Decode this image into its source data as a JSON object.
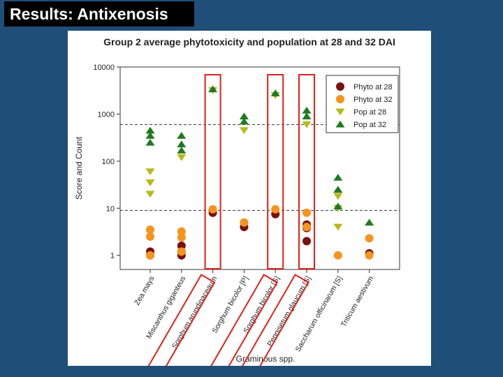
{
  "slide": {
    "title": "Results: Antixenosis"
  },
  "chart_data": {
    "type": "scatter",
    "title": "Group 2 average phytotoxicity and population at 28 and 32 DAI",
    "xlabel": "Graminous spp.",
    "ylabel": "Score and Count",
    "yscale": "log",
    "ylim": [
      0.5,
      10000
    ],
    "yticks": [
      "1",
      "10",
      "100",
      "1000",
      "10000"
    ],
    "yticks_values": [
      1,
      10,
      100,
      1000,
      10000
    ],
    "categories": [
      "Zea mays",
      "Miscanthus giganteus",
      "Sorghum arundinaceaum",
      "Sorghum bicolor [P]",
      "Sorghum bicolor [S]",
      "Pennisetum glaucum [S]",
      "Saccharum officinarum [S]",
      "Triticum aestivum"
    ],
    "reference_lines": [
      600,
      9
    ],
    "highlighted_categories": [
      "Sorghum arundinaceaum",
      "Sorghum bicolor [S]",
      "Pennisetum glaucum [S]"
    ],
    "highlight_color": "#e0201b",
    "grid": false,
    "legend_position": "top-right",
    "series": [
      {
        "name": "Phyto at 28",
        "marker": "circle",
        "color": "#7a1010",
        "points": [
          {
            "category": "Zea mays",
            "values": [
              1.2,
              1.0
            ]
          },
          {
            "category": "Miscanthus giganteus",
            "values": [
              1.6,
              1.2,
              1.0
            ]
          },
          {
            "category": "Sorghum arundinaceaum",
            "values": [
              8
            ]
          },
          {
            "category": "Sorghum bicolor [P]",
            "values": [
              4
            ]
          },
          {
            "category": "Sorghum bicolor [S]",
            "values": [
              7.5
            ]
          },
          {
            "category": "Pennisetum glaucum [S]",
            "values": [
              4.5,
              3.8,
              2
            ]
          },
          {
            "category": "Saccharum officinarum [S]",
            "values": []
          },
          {
            "category": "Triticum aestivum",
            "values": [
              1.1
            ]
          }
        ]
      },
      {
        "name": "Phyto at 32",
        "marker": "circle",
        "color": "#f7941d",
        "points": [
          {
            "category": "Zea mays",
            "values": [
              3.5,
              2.5,
              1.0
            ]
          },
          {
            "category": "Miscanthus giganteus",
            "values": [
              3.2,
              2.4,
              1.2
            ]
          },
          {
            "category": "Sorghum arundinaceaum",
            "values": [
              9.5
            ]
          },
          {
            "category": "Sorghum bicolor [P]",
            "values": [
              5
            ]
          },
          {
            "category": "Sorghum bicolor [S]",
            "values": [
              9.5
            ]
          },
          {
            "category": "Pennisetum glaucum [S]",
            "values": [
              8,
              4
            ]
          },
          {
            "category": "Saccharum officinarum [S]",
            "values": [
              1.0
            ]
          },
          {
            "category": "Triticum aestivum",
            "values": [
              2.3,
              1.0
            ]
          }
        ]
      },
      {
        "name": "Pop at 28",
        "marker": "triangle-down",
        "color": "#b8b81a",
        "points": [
          {
            "category": "Zea mays",
            "values": [
              60,
              35,
              20
            ]
          },
          {
            "category": "Miscanthus giganteus",
            "values": [
              120
            ]
          },
          {
            "category": "Sorghum arundinaceaum",
            "values": [
              3200
            ]
          },
          {
            "category": "Sorghum bicolor [P]",
            "values": [
              450
            ]
          },
          {
            "category": "Sorghum bicolor [S]",
            "values": [
              2500
            ]
          },
          {
            "category": "Pennisetum glaucum [S]",
            "values": [
              600
            ]
          },
          {
            "category": "Saccharum officinarum [S]",
            "values": [
              18,
              10,
              4
            ]
          },
          {
            "category": "Triticum aestivum",
            "values": []
          }
        ]
      },
      {
        "name": "Pop at 32",
        "marker": "triangle-up",
        "color": "#1f7a1f",
        "points": [
          {
            "category": "Zea mays",
            "values": [
              450,
              350,
              250
            ]
          },
          {
            "category": "Miscanthus giganteus",
            "values": [
              350,
              230,
              170
            ]
          },
          {
            "category": "Sorghum arundinaceaum",
            "values": [
              3400
            ]
          },
          {
            "category": "Sorghum bicolor [P]",
            "values": [
              900,
              700
            ]
          },
          {
            "category": "Sorghum bicolor [S]",
            "values": [
              2800
            ]
          },
          {
            "category": "Pennisetum glaucum [S]",
            "values": [
              1200,
              900
            ]
          },
          {
            "category": "Saccharum officinarum [S]",
            "values": [
              45,
              25,
              11
            ]
          },
          {
            "category": "Triticum aestivum",
            "values": [
              5
            ]
          }
        ]
      }
    ]
  }
}
